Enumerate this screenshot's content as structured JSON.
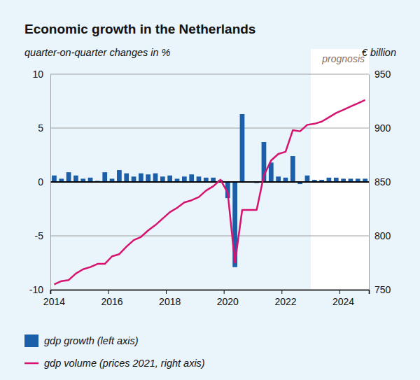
{
  "chart_data": {
    "type": "bar",
    "title": "Economic growth in the Netherlands",
    "y_label": "quarter-on-quarter changes in %",
    "y2_label": "€ billion",
    "categories": [
      "2014",
      null,
      null,
      null,
      null,
      null,
      null,
      null,
      "2016",
      null,
      null,
      null,
      null,
      null,
      null,
      null,
      "2018",
      null,
      null,
      null,
      null,
      null,
      null,
      null,
      "2020",
      null,
      null,
      null,
      null,
      null,
      null,
      null,
      "2022",
      null,
      null,
      null,
      null,
      null,
      null,
      null,
      "2024",
      null,
      null,
      null
    ],
    "series": [
      {
        "name": "gdp growth (left axis)",
        "type": "bar",
        "color": "#1a5fa8",
        "axis": "y",
        "values": [
          0.6,
          0.3,
          0.9,
          0.6,
          0.3,
          0.4,
          0.1,
          0.9,
          0.3,
          1.1,
          0.8,
          0.5,
          0.8,
          0.7,
          0.8,
          0.5,
          0.6,
          0.3,
          0.5,
          0.7,
          0.5,
          0.4,
          0.4,
          0.2,
          -1.5,
          -7.9,
          6.3,
          0.0,
          -0.1,
          3.7,
          1.8,
          0.5,
          0.4,
          2.4,
          -0.2,
          0.6,
          0.2,
          0.2,
          0.4,
          0.4,
          0.3,
          0.3,
          0.3,
          0.3
        ]
      },
      {
        "name": "gdp volume (prices 2021, right axis)",
        "type": "line",
        "color": "#d6136f",
        "axis": "y2",
        "values": [
          755,
          758,
          759,
          765,
          769,
          771,
          774,
          774,
          781,
          783,
          790,
          796,
          799,
          805,
          810,
          816,
          822,
          826,
          831,
          833,
          836,
          842,
          846,
          852,
          840,
          775,
          824,
          824,
          824,
          856,
          870,
          876,
          878,
          898,
          897,
          903,
          904,
          906,
          910,
          914,
          917,
          920,
          923,
          926
        ]
      }
    ],
    "ylim": [
      -10,
      10
    ],
    "yticks": [
      -10,
      -5,
      0,
      5,
      10
    ],
    "y2lim": [
      750,
      950
    ],
    "y2ticks": [
      750,
      800,
      850,
      900,
      950
    ],
    "grid": true,
    "legend": "bottom-left",
    "annotations": [
      {
        "text": "prognosis",
        "start": 36
      }
    ]
  }
}
